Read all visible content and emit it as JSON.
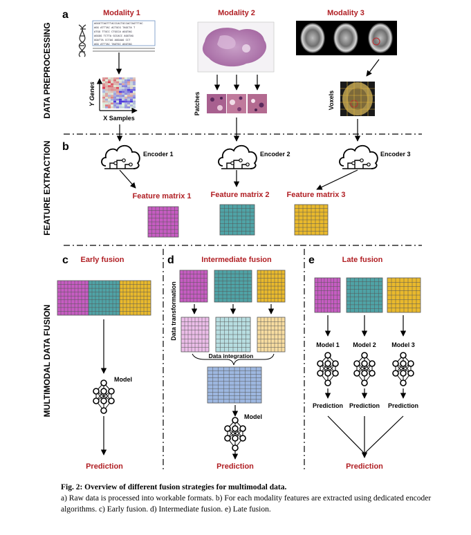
{
  "sections": {
    "preprocessing_label": "DATA PREPROCESSING",
    "extraction_label": "FEATURE EXTRACTION",
    "fusion_label": "MULTIMODAL DATA FUSION"
  },
  "panels": {
    "a": "a",
    "b": "b",
    "c": "c",
    "d": "d",
    "e": "e"
  },
  "modalities": [
    "Modality 1",
    "Modality 2",
    "Modality 3"
  ],
  "modality1": {
    "y_label": "Y Genes",
    "x_label": "X Samples",
    "seq_lines": [
      "AGGGTTAGTTTACCCACTGCCACTAGTTTAC",
      "AGG    ATTTAC  ACTGCG  TAGCTA T",
      "ATGG     TTGCC  CTGCCA  AGGTAG",
      "AGGGG     TCTTA  GCCACC  AGGTAG",
      "  GGATTA    CCTAG  AGGAAG  CCT",
      "AGG    ATTTAC  TAGTGC  AGGTAG"
    ]
  },
  "modality2": {
    "side_label": "Patches"
  },
  "modality3": {
    "side_label": "Voxels"
  },
  "encoders": [
    "Encoder 1",
    "Encoder 2",
    "Encoder 3"
  ],
  "feature_matrices": [
    "Feature matrix 1",
    "Feature matrix 2",
    "Feature matrix 3"
  ],
  "colors": {
    "magenta": "#c65cc2",
    "teal": "#4fa3a6",
    "yellow": "#e9b92c",
    "magenta_light": "#ebbde8",
    "teal_light": "#b7dde0",
    "yellow_light": "#f7dca0",
    "blue": "#9db7e0",
    "title_red": "#b01e23",
    "grid": "#555555"
  },
  "early_fusion": {
    "title": "Early fusion",
    "model": "Model",
    "prediction": "Prediction"
  },
  "intermediate_fusion": {
    "title": "Intermediate fusion",
    "side_label": "Data transformation",
    "integration": "Data integration",
    "model": "Model",
    "prediction": "Prediction"
  },
  "late_fusion": {
    "title": "Late fusion",
    "models": [
      "Model 1",
      "Model 2",
      "Model 3"
    ],
    "predictions": [
      "Prediction",
      "Prediction",
      "Prediction"
    ],
    "final_prediction": "Prediction"
  },
  "caption": {
    "title": "Fig. 2: Overview of different fusion strategies for multimodal data.",
    "body": "a) Raw data is processed into workable formats. b) For each modality features are extracted using dedicated encoder algorithms. c) Early fusion. d) Intermediate fusion. e) Late fusion."
  }
}
